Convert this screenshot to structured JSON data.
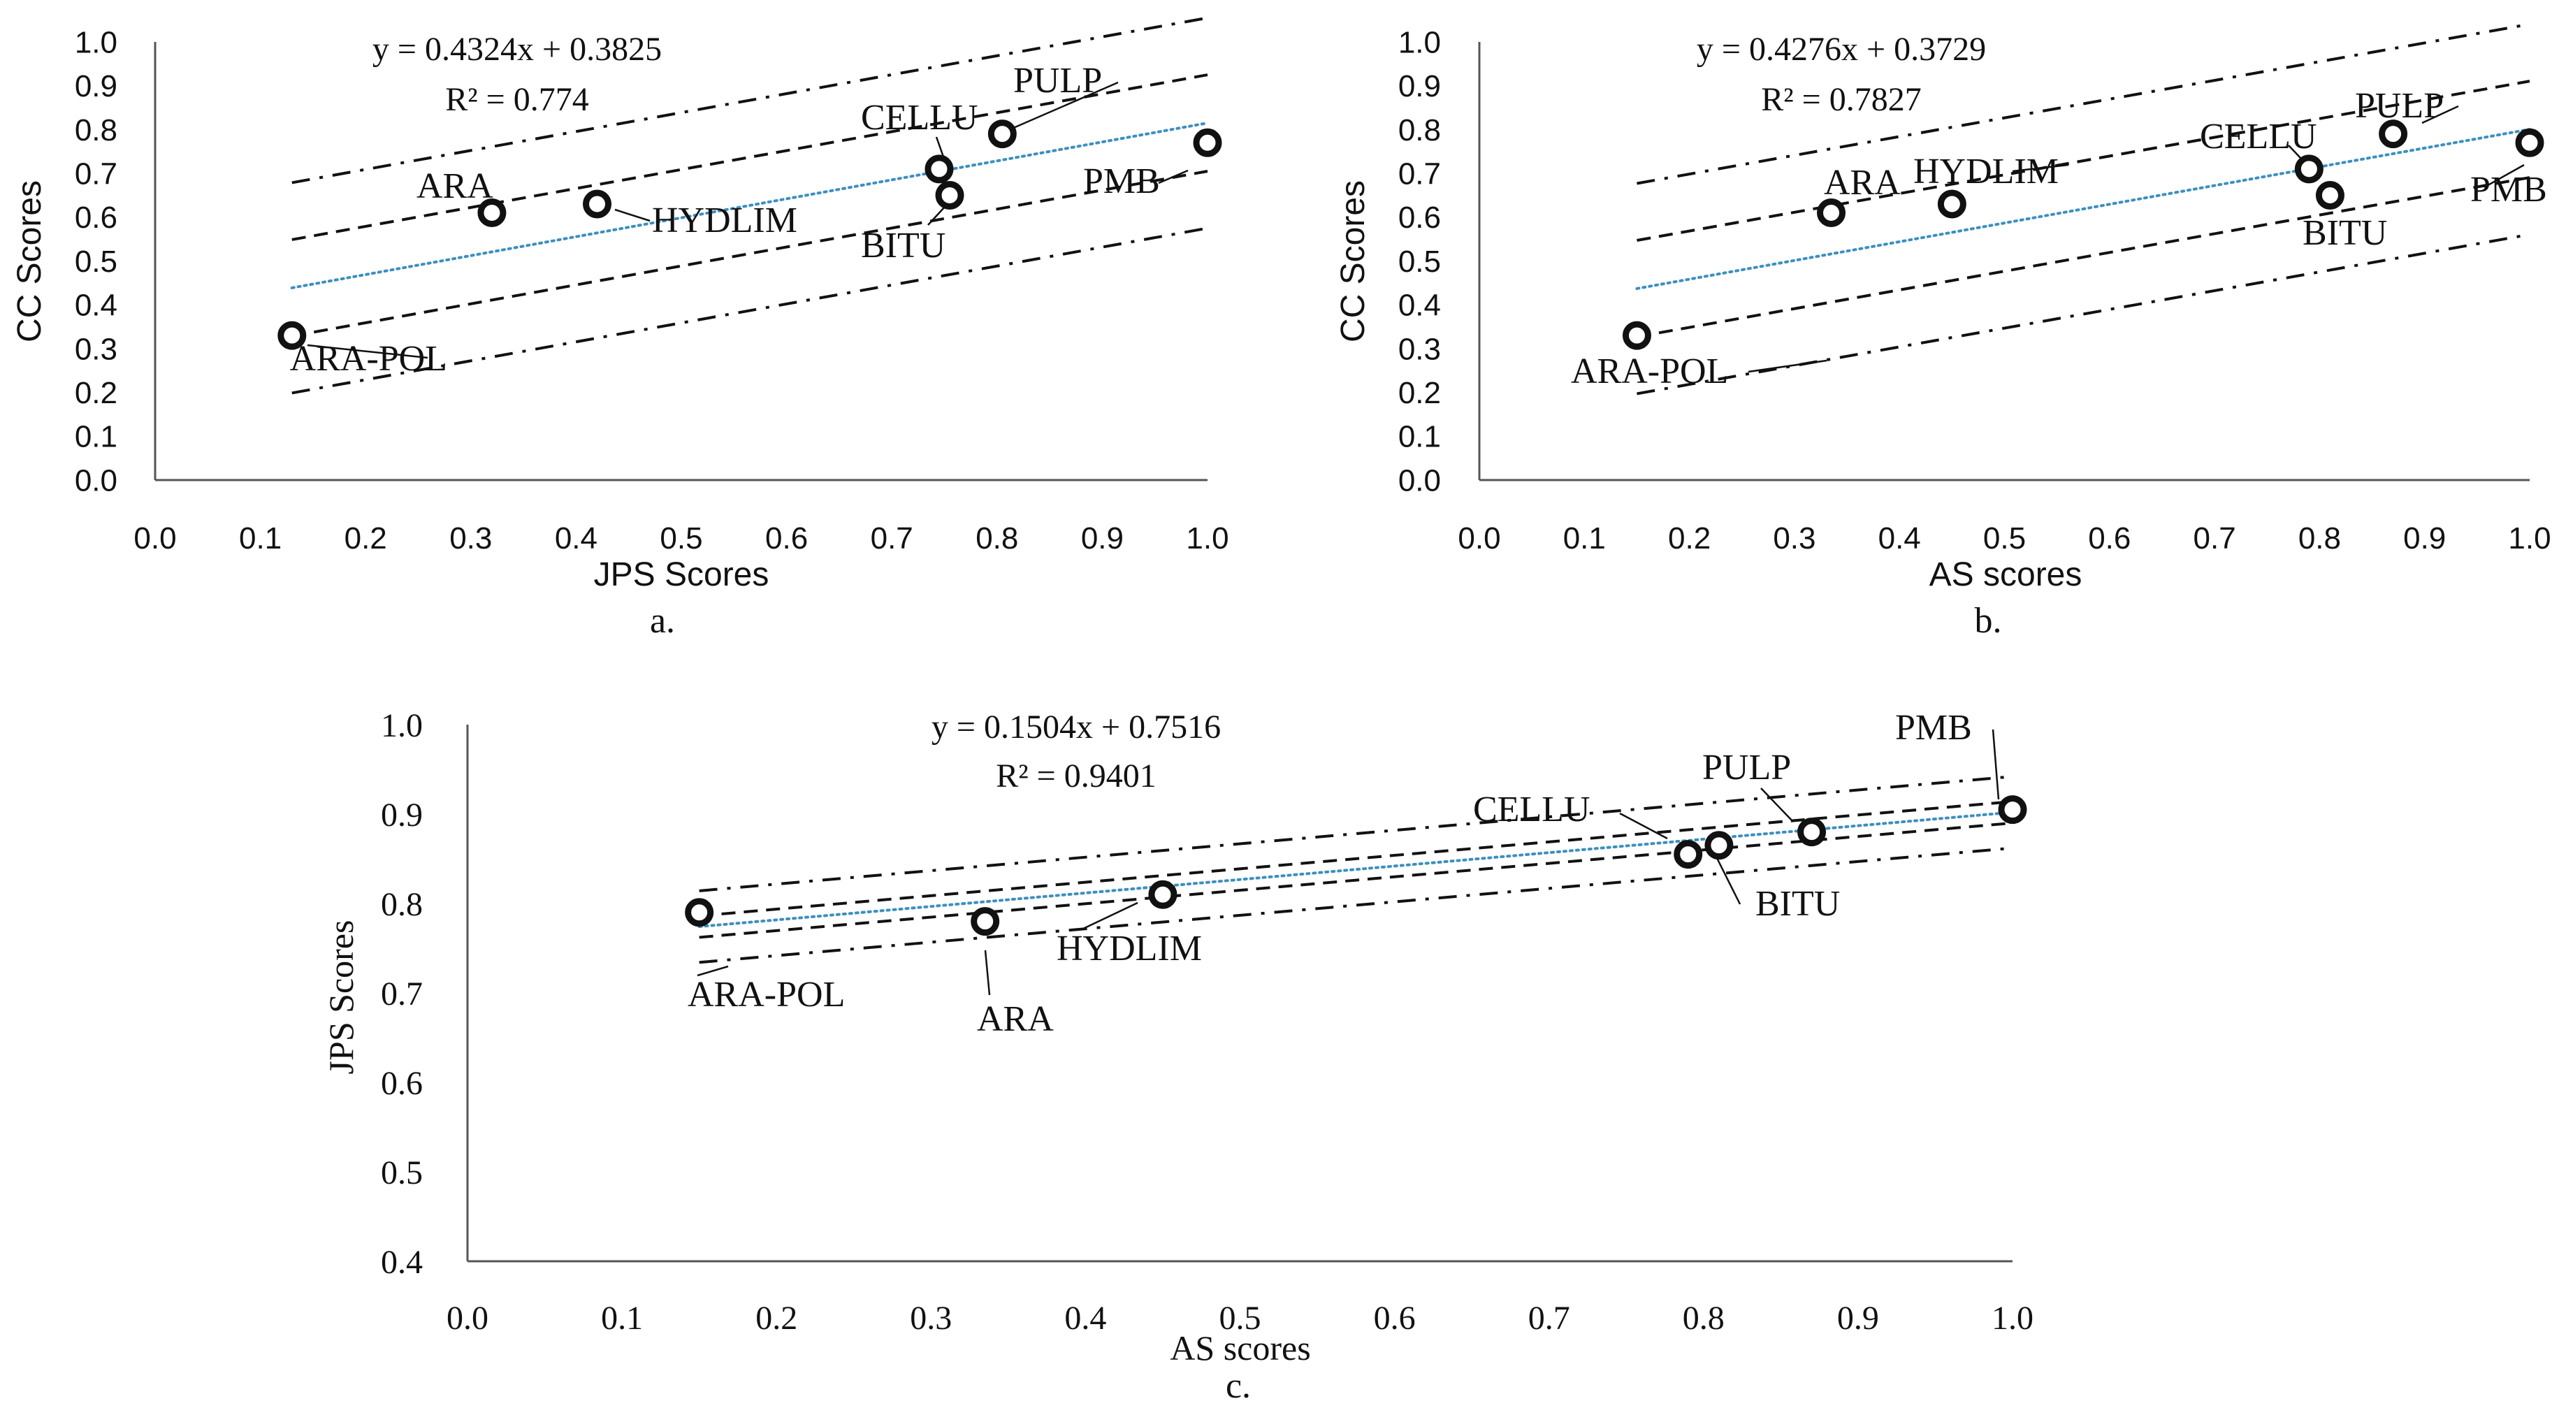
{
  "chart_data": [
    {
      "type": "scatter",
      "panel": "a.",
      "xlabel": "JPS Scores",
      "ylabel": "CC Scores",
      "xlim": [
        0.0,
        1.0
      ],
      "ylim": [
        0.0,
        1.0
      ],
      "xticks": [
        "0.0",
        "0.1",
        "0.2",
        "0.3",
        "0.4",
        "0.5",
        "0.6",
        "0.7",
        "0.8",
        "0.9",
        "1.0"
      ],
      "yticks": [
        "0.0",
        "0.1",
        "0.2",
        "0.3",
        "0.4",
        "0.5",
        "0.6",
        "0.7",
        "0.8",
        "0.9",
        "1.0"
      ],
      "equation": "y = 0.4324x + 0.3825",
      "r2": "R² = 0.774",
      "trendline": {
        "slope": 0.4324,
        "intercept": 0.3825,
        "x_range": [
          0.13,
          1.0
        ]
      },
      "confidence_band": {
        "half_width": 0.11
      },
      "prediction_band": {
        "half_width": 0.24
      },
      "points": [
        {
          "label": "ARA-POL",
          "x": 0.13,
          "y": 0.33
        },
        {
          "label": "ARA",
          "x": 0.32,
          "y": 0.61
        },
        {
          "label": "HYDLIM",
          "x": 0.42,
          "y": 0.63
        },
        {
          "label": "CELLU",
          "x": 0.745,
          "y": 0.71
        },
        {
          "label": "BITU",
          "x": 0.755,
          "y": 0.65
        },
        {
          "label": "PULP",
          "x": 0.805,
          "y": 0.79
        },
        {
          "label": "PMB",
          "x": 1.0,
          "y": 0.77
        }
      ]
    },
    {
      "type": "scatter",
      "panel": "b.",
      "xlabel": "AS scores",
      "ylabel": "CC Scores",
      "xlim": [
        0.0,
        1.0
      ],
      "ylim": [
        0.0,
        1.0
      ],
      "xticks": [
        "0.0",
        "0.1",
        "0.2",
        "0.3",
        "0.4",
        "0.5",
        "0.6",
        "0.7",
        "0.8",
        "0.9",
        "1.0"
      ],
      "yticks": [
        "0.0",
        "0.1",
        "0.2",
        "0.3",
        "0.4",
        "0.5",
        "0.6",
        "0.7",
        "0.8",
        "0.9",
        "1.0"
      ],
      "equation": "y = 0.4276x + 0.3729",
      "r2": "R² = 0.7827",
      "trendline": {
        "slope": 0.4276,
        "intercept": 0.3729,
        "x_range": [
          0.15,
          1.0
        ]
      },
      "confidence_band": {
        "half_width": 0.11
      },
      "prediction_band": {
        "half_width": 0.24
      },
      "points": [
        {
          "label": "ARA-POL",
          "x": 0.15,
          "y": 0.33
        },
        {
          "label": "ARA",
          "x": 0.335,
          "y": 0.61
        },
        {
          "label": "HYDLIM",
          "x": 0.45,
          "y": 0.63
        },
        {
          "label": "CELLU",
          "x": 0.79,
          "y": 0.71
        },
        {
          "label": "BITU",
          "x": 0.81,
          "y": 0.65
        },
        {
          "label": "PULP",
          "x": 0.87,
          "y": 0.79
        },
        {
          "label": "PMB",
          "x": 1.0,
          "y": 0.77
        }
      ]
    },
    {
      "type": "scatter",
      "panel": "c.",
      "xlabel": "AS scores",
      "ylabel": "JPS  Scores",
      "xlim": [
        0.0,
        1.0
      ],
      "ylim": [
        0.4,
        1.0
      ],
      "xticks": [
        "0.0",
        "0.1",
        "0.2",
        "0.3",
        "0.4",
        "0.5",
        "0.6",
        "0.7",
        "0.8",
        "0.9",
        "1.0"
      ],
      "yticks": [
        "0.4",
        "0.5",
        "0.6",
        "0.7",
        "0.8",
        "0.9",
        "1.0"
      ],
      "equation": "y = 0.1504x + 0.7516",
      "r2": "R² = 0.9401",
      "trendline": {
        "slope": 0.1504,
        "intercept": 0.7516,
        "x_range": [
          0.15,
          1.0
        ]
      },
      "confidence_band": {
        "half_width": 0.012
      },
      "prediction_band": {
        "half_width": 0.04
      },
      "points": [
        {
          "label": "ARA-POL",
          "x": 0.15,
          "y": 0.79
        },
        {
          "label": "ARA",
          "x": 0.335,
          "y": 0.78
        },
        {
          "label": "HYDLIM",
          "x": 0.45,
          "y": 0.81
        },
        {
          "label": "CELLU",
          "x": 0.79,
          "y": 0.855
        },
        {
          "label": "BITU",
          "x": 0.81,
          "y": 0.865
        },
        {
          "label": "PULP",
          "x": 0.87,
          "y": 0.88
        },
        {
          "label": "PMB",
          "x": 1.0,
          "y": 0.905
        }
      ]
    }
  ],
  "colors": {
    "trendline": "#3c8fc0",
    "ink": "#111111",
    "axis": "#555555"
  }
}
